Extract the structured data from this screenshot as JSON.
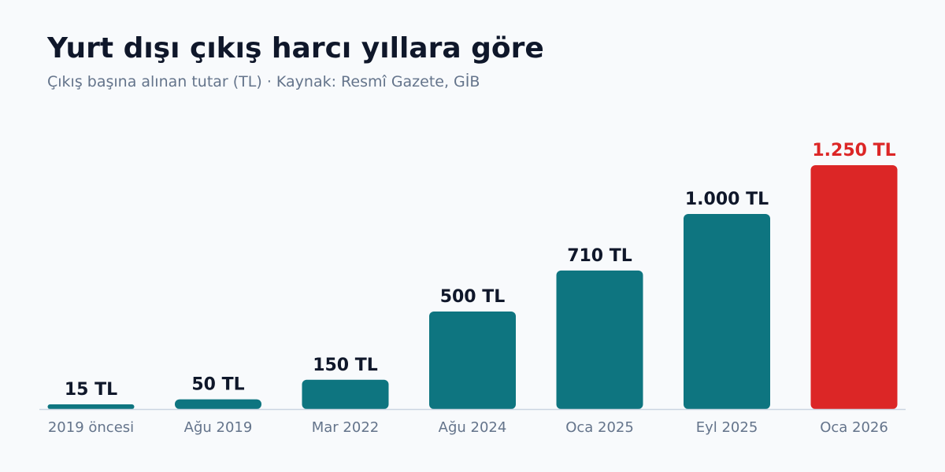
{
  "header": {
    "title": "Yurt dışı çıkış harcı yıllara göre",
    "subtitle": "Çıkış başına alınan tutar (TL) · Kaynak: Resmî Gazete, GİB"
  },
  "colors": {
    "bar": "#0e7580",
    "highlight": "#dc2626",
    "label": "#0f172a",
    "axis": "#cbd5e1"
  },
  "chart_data": {
    "type": "bar",
    "categories": [
      "2019 öncesi",
      "Ağu 2019",
      "Mar 2022",
      "Ağu 2024",
      "Oca 2025",
      "Eyl 2025",
      "Oca 2026"
    ],
    "values": [
      15,
      50,
      150,
      500,
      710,
      1000,
      1250
    ],
    "value_labels": [
      "15 TL",
      "50 TL",
      "150 TL",
      "500 TL",
      "710 TL",
      "1.000 TL",
      "1.250 TL"
    ],
    "highlight_index": 6,
    "ylim": [
      0,
      1250
    ],
    "grid": false,
    "legend": "none"
  }
}
